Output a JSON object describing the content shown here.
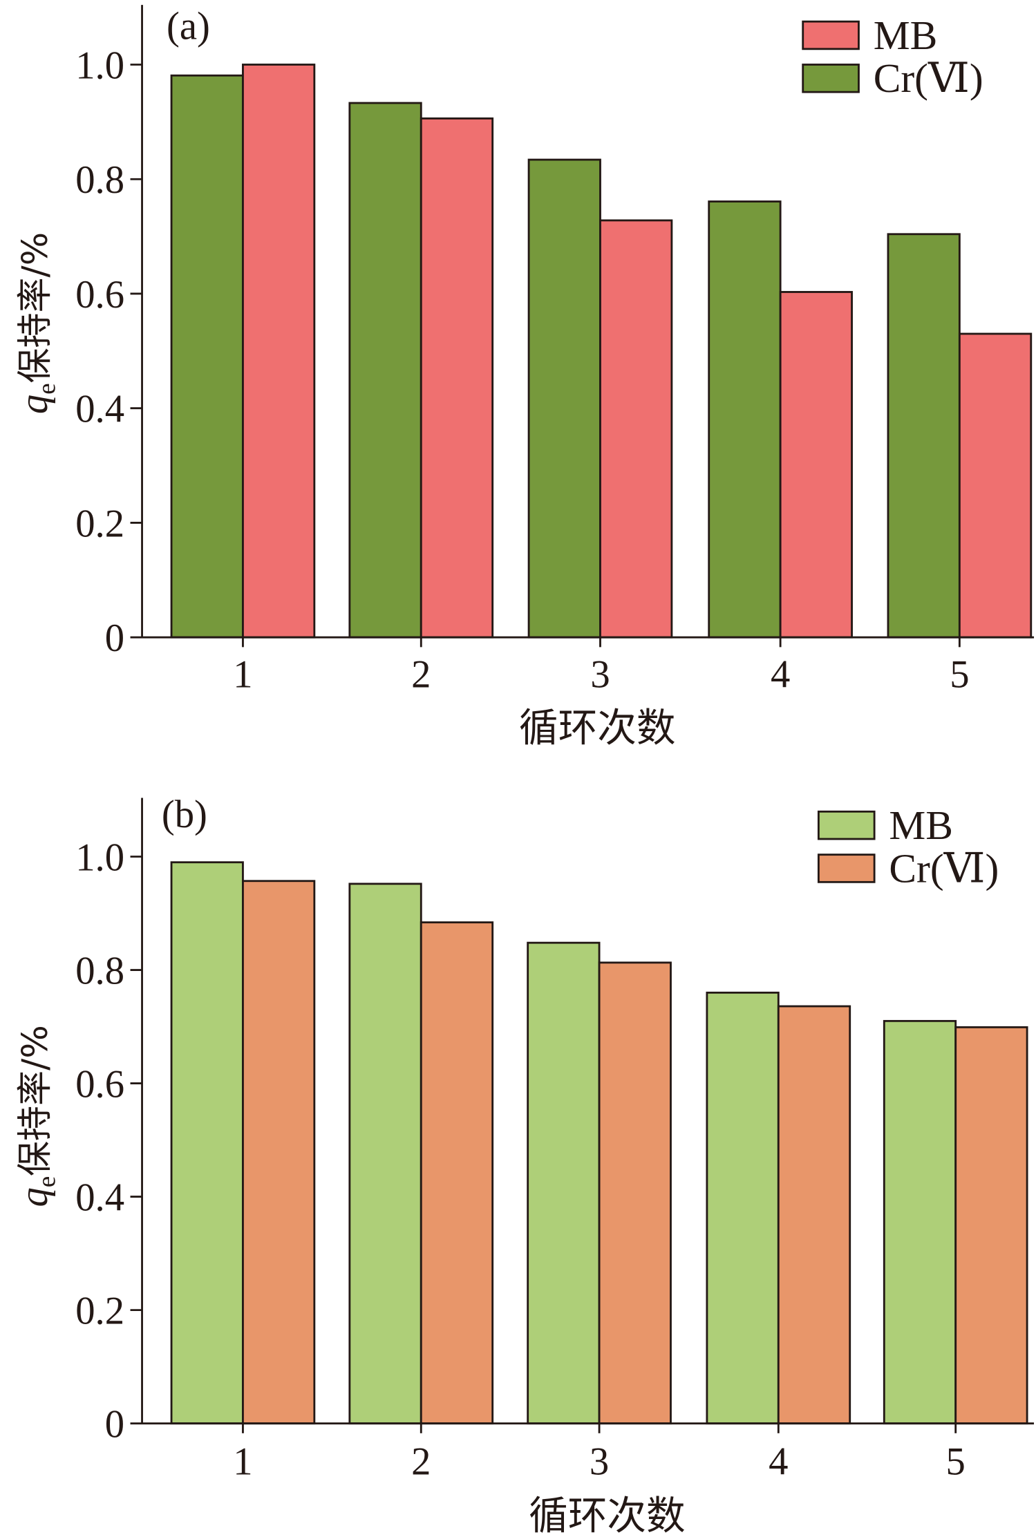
{
  "chart_data": [
    {
      "type": "bar",
      "panel_label": "(a)",
      "categories": [
        "1",
        "2",
        "3",
        "4",
        "5"
      ],
      "xlabel": "循环次数",
      "ylabel_italic": "q",
      "ylabel_sub": "e",
      "ylabel_rest": "保持率/%",
      "ylim": [
        0,
        1.1
      ],
      "yticks": [
        "0",
        "0.2",
        "0.4",
        "0.6",
        "0.8",
        "1.0"
      ],
      "legend_position": "top-right",
      "legend": [
        "MB",
        "Cr(Ⅵ)"
      ],
      "series": [
        {
          "name": "MB",
          "color": "#ef7070",
          "values": [
            1.0,
            0.906,
            0.728,
            0.603,
            0.53
          ]
        },
        {
          "name": "Cr(Ⅵ)",
          "color": "#76993c",
          "values": [
            0.981,
            0.933,
            0.834,
            0.761,
            0.704
          ]
        }
      ],
      "bar_order": [
        "Cr(Ⅵ)",
        "MB"
      ]
    },
    {
      "type": "bar",
      "panel_label": "(b)",
      "categories": [
        "1",
        "2",
        "3",
        "4",
        "5"
      ],
      "xlabel": "循环次数",
      "ylabel_italic": "q",
      "ylabel_sub": "e",
      "ylabel_rest": "保持率/%",
      "ylim": [
        0,
        1.1
      ],
      "yticks": [
        "0",
        "0.2",
        "0.4",
        "0.6",
        "0.8",
        "1.0"
      ],
      "legend_position": "top-right",
      "legend": [
        "MB",
        "Cr(Ⅵ)"
      ],
      "series": [
        {
          "name": "MB",
          "color": "#aecf78",
          "values": [
            0.99,
            0.952,
            0.848,
            0.76,
            0.71
          ]
        },
        {
          "name": "Cr(Ⅵ)",
          "color": "#e8966a",
          "values": [
            0.957,
            0.884,
            0.813,
            0.736,
            0.699
          ]
        }
      ],
      "bar_order": [
        "MB",
        "Cr(Ⅵ)"
      ]
    }
  ]
}
